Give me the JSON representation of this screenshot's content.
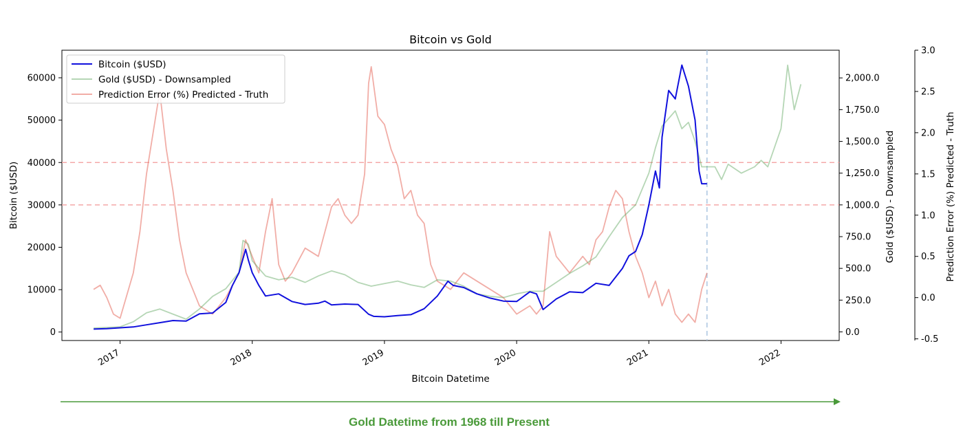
{
  "chart_data": {
    "type": "line",
    "title": "Bitcoin vs Gold",
    "xlabel": "Bitcoin Datetime",
    "x_ticks": [
      "2017",
      "2018",
      "2019",
      "2020",
      "2021",
      "2022"
    ],
    "x_range": [
      2016.56,
      2022.44
    ],
    "grid": false,
    "legend_placement": "top-left",
    "axes": {
      "left": {
        "label": "Bitcoin ($USD)",
        "ticks": [
          "0",
          "10000",
          "20000",
          "30000",
          "40000",
          "50000",
          "60000"
        ],
        "tick_values": [
          0,
          10000,
          20000,
          30000,
          40000,
          50000,
          60000
        ],
        "range": [
          -2000,
          66500
        ]
      },
      "right1": {
        "label": "Gold ($USD) - Downsampled",
        "ticks": [
          "0.0",
          "250.0",
          "500.0",
          "750.0",
          "1,000.0",
          "1,250.0",
          "1,500.0",
          "1,750.0",
          "2,000.0"
        ],
        "tick_values": [
          0,
          250,
          500,
          750,
          1000,
          1250,
          1500,
          1750,
          2000
        ],
        "range": [
          -68,
          2218
        ]
      },
      "right2": {
        "label": "Prediction Error (%) Predicted - Truth",
        "ticks": [
          "-0.5",
          "0.0",
          "0.5",
          "1.0",
          "1.5",
          "2.0",
          "2.5",
          "3.0"
        ],
        "tick_values": [
          -0.5,
          0.0,
          0.5,
          1.0,
          1.5,
          2.0,
          2.5,
          3.0
        ],
        "range": [
          -0.52,
          3.0
        ]
      }
    },
    "reference_lines": [
      {
        "orientation": "horizontal",
        "axis": "left",
        "value": 40000,
        "color": "#f4a8a8",
        "style": "dashed"
      },
      {
        "orientation": "horizontal",
        "axis": "left",
        "value": 30000,
        "color": "#f4a8a8",
        "style": "dashed"
      },
      {
        "orientation": "vertical",
        "x": 2021.44,
        "color": "#a9c4e0",
        "style": "dashed"
      }
    ],
    "series": [
      {
        "name": "Bitcoin ($USD)",
        "axis": "left",
        "color": "#1010dd",
        "width": 2.0,
        "opacity": 1,
        "x": [
          2016.8,
          2016.9,
          2017.0,
          2017.1,
          2017.2,
          2017.3,
          2017.4,
          2017.5,
          2017.6,
          2017.7,
          2017.8,
          2017.85,
          2017.9,
          2017.95,
          2017.97,
          2018.0,
          2018.05,
          2018.1,
          2018.2,
          2018.3,
          2018.4,
          2018.5,
          2018.55,
          2018.6,
          2018.7,
          2018.8,
          2018.88,
          2018.92,
          2019.0,
          2019.1,
          2019.2,
          2019.3,
          2019.4,
          2019.48,
          2019.52,
          2019.6,
          2019.7,
          2019.8,
          2019.9,
          2020.0,
          2020.1,
          2020.15,
          2020.2,
          2020.3,
          2020.4,
          2020.5,
          2020.6,
          2020.7,
          2020.8,
          2020.85,
          2020.9,
          2020.95,
          2021.0,
          2021.05,
          2021.08,
          2021.1,
          2021.15,
          2021.2,
          2021.25,
          2021.3,
          2021.35,
          2021.38,
          2021.4,
          2021.44
        ],
        "y": [
          700,
          800,
          1000,
          1200,
          1700,
          2200,
          2700,
          2600,
          4300,
          4500,
          7000,
          11000,
          14000,
          19500,
          17000,
          14000,
          11000,
          8500,
          9000,
          7200,
          6500,
          6800,
          7300,
          6400,
          6600,
          6500,
          4200,
          3700,
          3600,
          3900,
          4100,
          5500,
          8500,
          12000,
          11000,
          10500,
          9000,
          8000,
          7300,
          7200,
          9500,
          9000,
          5300,
          7800,
          9500,
          9300,
          11500,
          11000,
          15000,
          18000,
          19000,
          23000,
          30000,
          38000,
          34000,
          46000,
          57000,
          55000,
          63000,
          58000,
          50000,
          38000,
          35000,
          35000
        ]
      },
      {
        "name": "Gold ($USD) - Downsampled",
        "axis": "right1",
        "color": "#5ba35b",
        "width": 1.8,
        "opacity": 0.45,
        "x": [
          2016.8,
          2017.0,
          2017.1,
          2017.2,
          2017.3,
          2017.4,
          2017.5,
          2017.6,
          2017.7,
          2017.8,
          2017.9,
          2017.93,
          2017.97,
          2018.0,
          2018.1,
          2018.2,
          2018.3,
          2018.4,
          2018.5,
          2018.6,
          2018.7,
          2018.8,
          2018.9,
          2019.0,
          2019.1,
          2019.2,
          2019.3,
          2019.4,
          2019.5,
          2019.6,
          2019.7,
          2019.8,
          2019.9,
          2020.0,
          2020.1,
          2020.2,
          2020.3,
          2020.4,
          2020.5,
          2020.6,
          2020.7,
          2020.8,
          2020.9,
          2021.0,
          2021.05,
          2021.1,
          2021.2,
          2021.25,
          2021.3,
          2021.35,
          2021.4,
          2021.5,
          2021.55,
          2021.6,
          2021.7,
          2021.8,
          2021.85,
          2021.9,
          2022.0,
          2022.05,
          2022.1,
          2022.15
        ],
        "y": [
          30,
          40,
          80,
          150,
          180,
          140,
          100,
          180,
          280,
          340,
          470,
          720,
          690,
          560,
          440,
          410,
          430,
          390,
          440,
          480,
          450,
          390,
          360,
          380,
          400,
          370,
          350,
          410,
          400,
          360,
          300,
          280,
          270,
          300,
          320,
          320,
          390,
          460,
          520,
          590,
          750,
          900,
          1000,
          1250,
          1450,
          1620,
          1740,
          1600,
          1650,
          1500,
          1300,
          1300,
          1200,
          1320,
          1250,
          1300,
          1350,
          1300,
          1600,
          2100,
          1750,
          1950
        ]
      },
      {
        "name": "Prediction Error (%) Predicted - Truth",
        "axis": "right2",
        "color": "#e8776a",
        "width": 1.8,
        "opacity": 0.6,
        "x": [
          2016.8,
          2016.85,
          2016.9,
          2016.95,
          2017.0,
          2017.1,
          2017.15,
          2017.2,
          2017.25,
          2017.3,
          2017.35,
          2017.4,
          2017.45,
          2017.5,
          2017.55,
          2017.6,
          2017.7,
          2017.8,
          2017.9,
          2017.95,
          2018.0,
          2018.05,
          2018.1,
          2018.15,
          2018.2,
          2018.25,
          2018.3,
          2018.4,
          2018.5,
          2018.55,
          2018.6,
          2018.65,
          2018.7,
          2018.75,
          2018.8,
          2018.85,
          2018.88,
          2018.9,
          2018.95,
          2019.0,
          2019.05,
          2019.1,
          2019.15,
          2019.2,
          2019.25,
          2019.3,
          2019.35,
          2019.4,
          2019.5,
          2019.6,
          2019.7,
          2019.8,
          2019.9,
          2020.0,
          2020.1,
          2020.15,
          2020.2,
          2020.25,
          2020.3,
          2020.4,
          2020.5,
          2020.55,
          2020.6,
          2020.65,
          2020.7,
          2020.75,
          2020.8,
          2020.85,
          2020.9,
          2020.95,
          2021.0,
          2021.05,
          2021.1,
          2021.15,
          2021.2,
          2021.25,
          2021.3,
          2021.35,
          2021.4,
          2021.44
        ],
        "y": [
          0.1,
          0.15,
          0.0,
          -0.2,
          -0.25,
          0.3,
          0.8,
          1.5,
          2.0,
          2.5,
          1.8,
          1.3,
          0.7,
          0.3,
          0.1,
          -0.1,
          -0.2,
          0.0,
          0.3,
          0.7,
          0.5,
          0.3,
          0.8,
          1.2,
          0.4,
          0.2,
          0.3,
          0.6,
          0.5,
          0.8,
          1.1,
          1.2,
          1.0,
          0.9,
          1.0,
          1.5,
          2.6,
          2.8,
          2.2,
          2.1,
          1.8,
          1.6,
          1.2,
          1.3,
          1.0,
          0.9,
          0.4,
          0.2,
          0.1,
          0.3,
          0.2,
          0.1,
          0.0,
          -0.2,
          -0.1,
          -0.2,
          -0.1,
          0.8,
          0.5,
          0.3,
          0.5,
          0.4,
          0.7,
          0.8,
          1.1,
          1.3,
          1.2,
          0.8,
          0.5,
          0.3,
          0.0,
          0.2,
          -0.1,
          0.1,
          -0.2,
          -0.3,
          -0.2,
          -0.3,
          0.1,
          0.3
        ]
      }
    ]
  },
  "annotation": {
    "text": "Gold Datetime from 1968 till Present",
    "color": "#4a9a3a"
  }
}
